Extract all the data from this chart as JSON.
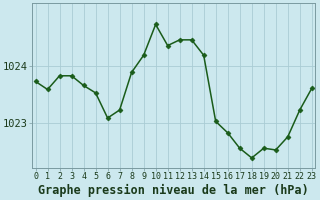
{
  "x": [
    0,
    1,
    2,
    3,
    4,
    5,
    6,
    7,
    8,
    9,
    10,
    11,
    12,
    13,
    14,
    15,
    16,
    17,
    18,
    19,
    20,
    21,
    22,
    23
  ],
  "y": [
    1023.72,
    1023.58,
    1023.82,
    1023.82,
    1023.65,
    1023.52,
    1023.08,
    1023.22,
    1023.88,
    1024.18,
    1024.72,
    1024.35,
    1024.45,
    1024.45,
    1024.18,
    1023.02,
    1022.82,
    1022.55,
    1022.38,
    1022.55,
    1022.52,
    1022.75,
    1023.22,
    1023.6
  ],
  "line_color": "#1a5c1a",
  "marker": "D",
  "marker_size": 2.5,
  "bg_color": "#cce8ee",
  "plot_bg_color": "#cce8ee",
  "grid_color": "#aaccd4",
  "title": "Graphe pression niveau de la mer (hPa)",
  "ylim_min": 1022.2,
  "ylim_max": 1025.1,
  "yticks": [
    1023,
    1024
  ],
  "xtick_labels": [
    "0",
    "1",
    "2",
    "3",
    "4",
    "5",
    "6",
    "7",
    "8",
    "9",
    "10",
    "11",
    "12",
    "13",
    "14",
    "15",
    "16",
    "17",
    "18",
    "19",
    "20",
    "21",
    "22",
    "23"
  ],
  "title_fontsize": 8.5,
  "ytick_fontsize": 7.5,
  "xtick_fontsize": 6,
  "line_width": 1.1,
  "spine_color": "#7a9aa0"
}
